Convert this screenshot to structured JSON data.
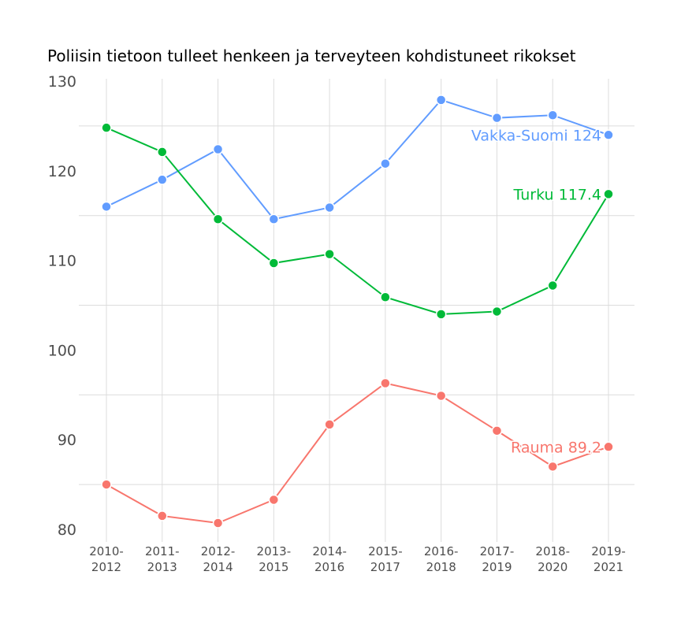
{
  "chart_data": {
    "type": "line",
    "title": "Poliisin tietoon tulleet henkeen ja terveyteen kohdistuneet rikokset",
    "xlabel": "",
    "ylabel": "",
    "ylim": [
      80,
      130
    ],
    "yticks": [
      80,
      90,
      100,
      110,
      120,
      130
    ],
    "grid": true,
    "categories": [
      [
        "2010-",
        "2012"
      ],
      [
        "2011-",
        "2013"
      ],
      [
        "2012-",
        "2014"
      ],
      [
        "2013-",
        "2015"
      ],
      [
        "2014-",
        "2016"
      ],
      [
        "2015-",
        "2017"
      ],
      [
        "2016-",
        "2018"
      ],
      [
        "2017-",
        "2019"
      ],
      [
        "2018-",
        "2020"
      ],
      [
        "2019-",
        "2021"
      ]
    ],
    "series": [
      {
        "name": "Vakka-Suomi",
        "end_label": "Vakka-Suomi 124",
        "color": "#619CFF",
        "values": [
          116.0,
          119.0,
          122.4,
          114.6,
          115.9,
          120.8,
          127.9,
          125.9,
          126.2,
          124.0
        ]
      },
      {
        "name": "Turku",
        "end_label": "Turku 117.4",
        "color": "#00BA38",
        "values": [
          124.8,
          122.1,
          114.6,
          109.7,
          110.7,
          105.9,
          104.0,
          104.3,
          107.2,
          117.4
        ]
      },
      {
        "name": "Rauma",
        "end_label": "Rauma 89.2",
        "color": "#F8766D",
        "values": [
          85.0,
          81.5,
          80.7,
          83.3,
          91.7,
          96.3,
          94.9,
          91.0,
          87.0,
          89.2
        ]
      }
    ]
  }
}
